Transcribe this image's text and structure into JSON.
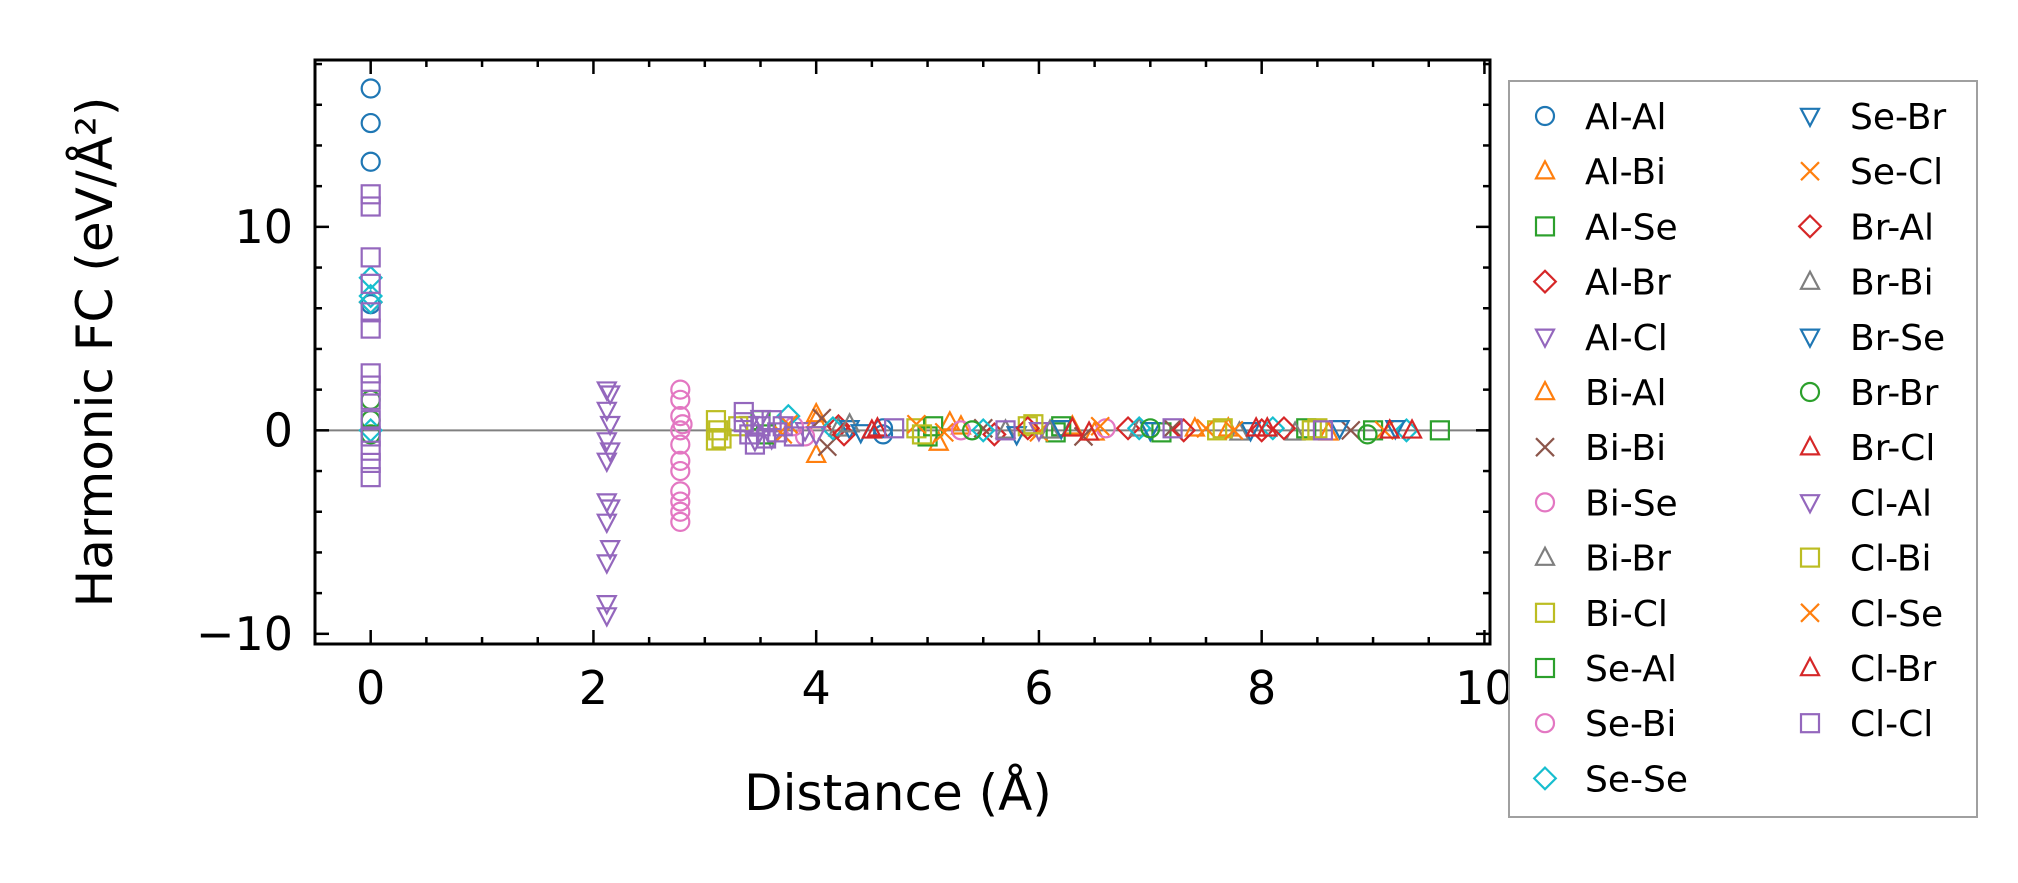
{
  "chart_data": {
    "type": "scatter",
    "xlabel": "Distance (Å)",
    "ylabel": "Harmonic FC (eV/Å²)",
    "xlim": [
      -0.5,
      10.05
    ],
    "ylim": [
      -10.5,
      18.2
    ],
    "xticks": [
      "0",
      "2",
      "4",
      "6",
      "8",
      "10"
    ],
    "yticks": [
      "−10",
      "0",
      "10"
    ],
    "grid": false,
    "legend_position": "outside-right",
    "reference_line_y": 0,
    "series": [
      {
        "name": "Al-Al",
        "marker": "circle",
        "color": "#1f77b4",
        "points": [
          [
            0,
            16.8
          ],
          [
            0,
            15.1
          ],
          [
            0,
            13.2
          ],
          [
            0,
            6.2
          ],
          [
            4.6,
            0.1
          ],
          [
            4.6,
            -0.2
          ]
        ]
      },
      {
        "name": "Al-Bi",
        "marker": "triangle-up",
        "color": "#ff7f0e",
        "points": [
          [
            4.0,
            0.8
          ],
          [
            4.0,
            -1.2
          ],
          [
            5.1,
            -0.6
          ],
          [
            5.2,
            0.4
          ],
          [
            6.3,
            0.2
          ],
          [
            7.4,
            0.1
          ],
          [
            8.6,
            -0.1
          ]
        ]
      },
      {
        "name": "Al-Se",
        "marker": "square",
        "color": "#2ca02c",
        "points": [
          [
            3.5,
            0.5
          ],
          [
            5.0,
            -0.3
          ],
          [
            6.2,
            0.2
          ],
          [
            7.1,
            -0.1
          ],
          [
            8.4,
            0.1
          ],
          [
            9.6,
            0.0
          ]
        ]
      },
      {
        "name": "Al-Br",
        "marker": "diamond",
        "color": "#d62728",
        "points": [
          [
            0,
            6.3
          ],
          [
            4.2,
            0.2
          ],
          [
            5.6,
            -0.2
          ],
          [
            6.8,
            0.1
          ],
          [
            8.0,
            0.0
          ]
        ]
      },
      {
        "name": "Al-Cl",
        "marker": "triangle-down",
        "color": "#9467bd",
        "points": [
          [
            2.12,
            2.0
          ],
          [
            2.12,
            1.0
          ],
          [
            2.12,
            -0.5
          ],
          [
            2.12,
            -1.5
          ],
          [
            2.12,
            -3.5
          ],
          [
            2.12,
            -4.5
          ],
          [
            2.12,
            -6.5
          ],
          [
            2.12,
            -8.5
          ],
          [
            2.12,
            -9.1
          ],
          [
            3.4,
            0.3
          ],
          [
            3.6,
            -0.4
          ],
          [
            3.9,
            0.0
          ]
        ]
      },
      {
        "name": "Bi-Al",
        "marker": "triangle-up",
        "color": "#ff7f0e",
        "points": [
          [
            4.0,
            0.5
          ],
          [
            5.3,
            0.2
          ],
          [
            6.5,
            -0.1
          ],
          [
            7.7,
            0.1
          ]
        ]
      },
      {
        "name": "Bi-Bi",
        "marker": "x",
        "color": "#8c564b",
        "points": [
          [
            4.05,
            0.6
          ],
          [
            4.1,
            -0.8
          ],
          [
            5.5,
            0.1
          ],
          [
            6.4,
            -0.3
          ],
          [
            7.2,
            0.1
          ],
          [
            8.8,
            0.0
          ]
        ]
      },
      {
        "name": "Bi-Se",
        "marker": "circle",
        "color": "#e377c2",
        "points": [
          [
            2.78,
            2.0
          ],
          [
            2.78,
            1.5
          ],
          [
            2.78,
            0.7
          ],
          [
            2.78,
            0.0
          ],
          [
            2.78,
            -0.7
          ],
          [
            2.78,
            -1.5
          ],
          [
            2.78,
            -2.0
          ],
          [
            2.78,
            -3.0
          ],
          [
            2.78,
            -3.5
          ],
          [
            2.78,
            -4.0
          ],
          [
            2.78,
            -4.5
          ],
          [
            3.8,
            0.2
          ]
        ]
      },
      {
        "name": "Bi-Br",
        "marker": "triangle-up",
        "color": "#7f7f7f",
        "points": [
          [
            4.2,
            0.1
          ],
          [
            5.7,
            0.0
          ],
          [
            6.9,
            0.1
          ],
          [
            8.3,
            -0.1
          ]
        ]
      },
      {
        "name": "Bi-Cl",
        "marker": "square",
        "color": "#bcbd22",
        "points": [
          [
            3.1,
            0.5
          ],
          [
            3.1,
            -0.5
          ],
          [
            3.3,
            0.2
          ],
          [
            4.9,
            0.1
          ],
          [
            5.9,
            0.2
          ],
          [
            7.6,
            0.0
          ],
          [
            8.5,
            0.1
          ]
        ]
      },
      {
        "name": "Se-Al",
        "marker": "square",
        "color": "#2ca02c",
        "points": [
          [
            3.55,
            -0.2
          ],
          [
            5.05,
            0.2
          ],
          [
            6.15,
            -0.1
          ],
          [
            9.0,
            0.0
          ]
        ]
      },
      {
        "name": "Se-Bi",
        "marker": "circle",
        "color": "#e377c2",
        "points": [
          [
            2.8,
            0.3
          ],
          [
            3.9,
            -0.3
          ],
          [
            5.3,
            0.0
          ],
          [
            6.6,
            0.1
          ]
        ]
      },
      {
        "name": "Se-Se",
        "marker": "diamond",
        "color": "#17becf",
        "points": [
          [
            0,
            7.5
          ],
          [
            0,
            6.6
          ],
          [
            0,
            6.3
          ],
          [
            0,
            0.0
          ],
          [
            3.75,
            0.7
          ],
          [
            4.15,
            0.1
          ],
          [
            5.5,
            0.0
          ],
          [
            6.9,
            0.1
          ],
          [
            8.1,
            0.1
          ],
          [
            9.3,
            0.0
          ]
        ]
      },
      {
        "name": "Se-Br",
        "marker": "triangle-down",
        "color": "#1f77b4",
        "points": [
          [
            4.3,
            0.1
          ],
          [
            5.8,
            -0.2
          ],
          [
            7.0,
            0.0
          ],
          [
            8.7,
            0.1
          ]
        ]
      },
      {
        "name": "Se-Cl",
        "marker": "x",
        "color": "#ff7f0e",
        "points": [
          [
            3.7,
            -0.2
          ],
          [
            4.9,
            0.3
          ],
          [
            6.0,
            -0.1
          ],
          [
            7.5,
            0.1
          ],
          [
            9.1,
            0.0
          ]
        ]
      },
      {
        "name": "Br-Al",
        "marker": "diamond",
        "color": "#d62728",
        "points": [
          [
            4.25,
            -0.2
          ],
          [
            5.9,
            0.1
          ],
          [
            7.3,
            0.0
          ],
          [
            8.2,
            0.1
          ]
        ]
      },
      {
        "name": "Br-Bi",
        "marker": "triangle-up",
        "color": "#7f7f7f",
        "points": [
          [
            4.3,
            0.3
          ],
          [
            6.1,
            0.0
          ],
          [
            7.8,
            -0.1
          ]
        ]
      },
      {
        "name": "Br-Se",
        "marker": "triangle-down",
        "color": "#1f77b4",
        "points": [
          [
            4.4,
            -0.1
          ],
          [
            6.2,
            0.1
          ],
          [
            7.9,
            0.0
          ],
          [
            9.2,
            0.1
          ]
        ]
      },
      {
        "name": "Br-Br",
        "marker": "circle",
        "color": "#2ca02c",
        "points": [
          [
            0,
            1.5
          ],
          [
            0,
            0.5
          ],
          [
            0,
            -0.2
          ],
          [
            5.4,
            0.0
          ],
          [
            7.0,
            0.1
          ],
          [
            8.95,
            -0.2
          ]
        ]
      },
      {
        "name": "Br-Cl",
        "marker": "triangle-up",
        "color": "#d62728",
        "points": [
          [
            4.5,
            0.0
          ],
          [
            6.3,
            0.1
          ],
          [
            7.95,
            0.1
          ],
          [
            9.35,
            0.0
          ]
        ]
      },
      {
        "name": "Cl-Al",
        "marker": "triangle-down",
        "color": "#9467bd",
        "points": [
          [
            2.15,
            1.8
          ],
          [
            2.15,
            0.3
          ],
          [
            2.15,
            -1.0
          ],
          [
            2.15,
            -3.8
          ],
          [
            2.15,
            -5.8
          ],
          [
            3.45,
            -0.5
          ],
          [
            3.5,
            0.6
          ],
          [
            4.0,
            -0.2
          ],
          [
            6.0,
            0.0
          ]
        ]
      },
      {
        "name": "Cl-Bi",
        "marker": "square",
        "color": "#bcbd22",
        "points": [
          [
            3.12,
            0.0
          ],
          [
            3.15,
            -0.4
          ],
          [
            4.95,
            -0.2
          ],
          [
            5.95,
            0.3
          ],
          [
            7.65,
            0.1
          ],
          [
            8.45,
            0.0
          ]
        ]
      },
      {
        "name": "Cl-Se",
        "marker": "x",
        "color": "#ff7f0e",
        "points": [
          [
            3.75,
            0.3
          ],
          [
            5.15,
            -0.1
          ],
          [
            6.55,
            0.2
          ],
          [
            7.75,
            0.0
          ]
        ]
      },
      {
        "name": "Cl-Br",
        "marker": "triangle-up",
        "color": "#d62728",
        "points": [
          [
            4.55,
            0.1
          ],
          [
            6.45,
            -0.1
          ],
          [
            8.05,
            0.1
          ],
          [
            9.15,
            0.0
          ]
        ]
      },
      {
        "name": "Cl-Cl",
        "marker": "square",
        "color": "#9467bd",
        "points": [
          [
            0,
            11.6
          ],
          [
            0,
            11.0
          ],
          [
            0,
            8.5
          ],
          [
            0,
            7.2
          ],
          [
            0,
            5.8
          ],
          [
            0,
            5.0
          ],
          [
            0,
            2.8
          ],
          [
            0,
            2.2
          ],
          [
            0,
            1.5
          ],
          [
            0,
            0.5
          ],
          [
            0,
            -0.3
          ],
          [
            0,
            -1.0
          ],
          [
            0,
            -1.6
          ],
          [
            0,
            -2.3
          ],
          [
            3.35,
            0.9
          ],
          [
            3.35,
            0.4
          ],
          [
            3.4,
            -0.2
          ],
          [
            3.45,
            -0.7
          ],
          [
            3.5,
            0.2
          ],
          [
            3.55,
            -0.4
          ],
          [
            3.6,
            0.5
          ],
          [
            3.65,
            -0.1
          ],
          [
            3.7,
            0.2
          ],
          [
            3.8,
            -0.3
          ],
          [
            4.7,
            0.1
          ],
          [
            5.7,
            0.0
          ],
          [
            7.2,
            0.1
          ],
          [
            8.55,
            0.0
          ]
        ]
      }
    ]
  }
}
